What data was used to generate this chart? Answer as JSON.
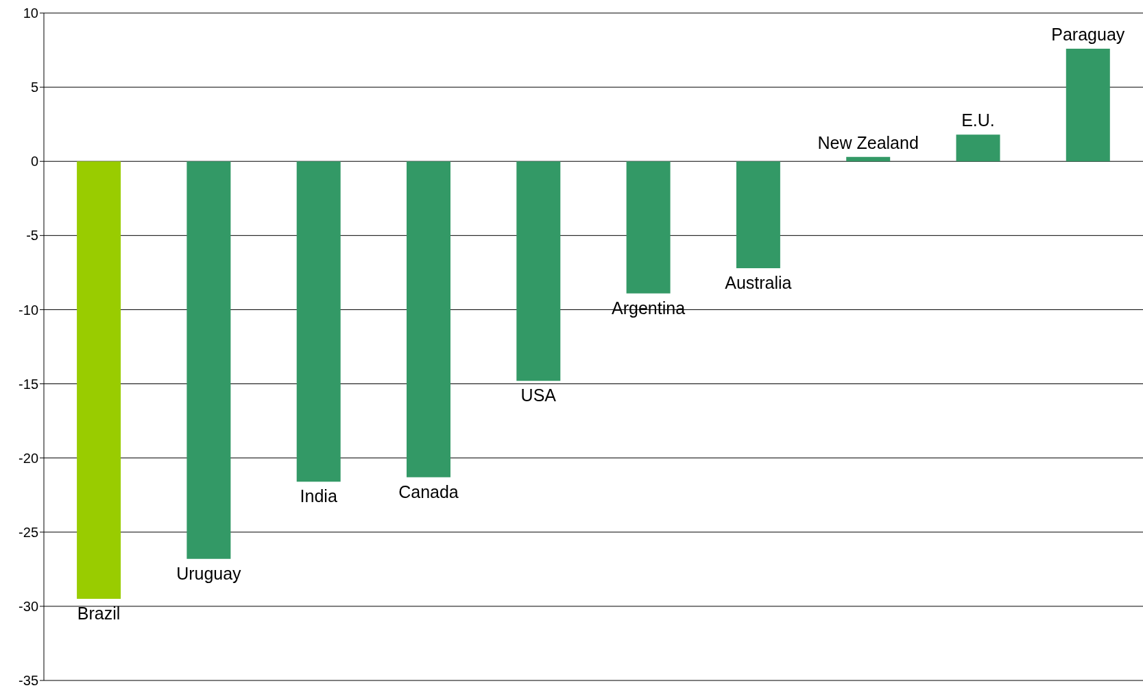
{
  "chart_data": {
    "type": "bar",
    "categories": [
      "Brazil",
      "Uruguay",
      "India",
      "Canada",
      "USA",
      "Argentina",
      "Australia",
      "New Zealand",
      "E.U.",
      "Paraguay"
    ],
    "values": [
      -29.5,
      -26.8,
      -21.6,
      -21.3,
      -14.8,
      -8.9,
      -7.2,
      0.3,
      1.8,
      7.6
    ],
    "colors": [
      "#99cc00",
      "#339966",
      "#339966",
      "#339966",
      "#339966",
      "#339966",
      "#339966",
      "#339966",
      "#339966",
      "#339966"
    ],
    "ylim": [
      -35,
      10
    ],
    "yticks": [
      -35,
      -30,
      -25,
      -20,
      -15,
      -10,
      -5,
      0,
      5,
      10
    ],
    "grid": "y",
    "tick_labels": "y"
  }
}
